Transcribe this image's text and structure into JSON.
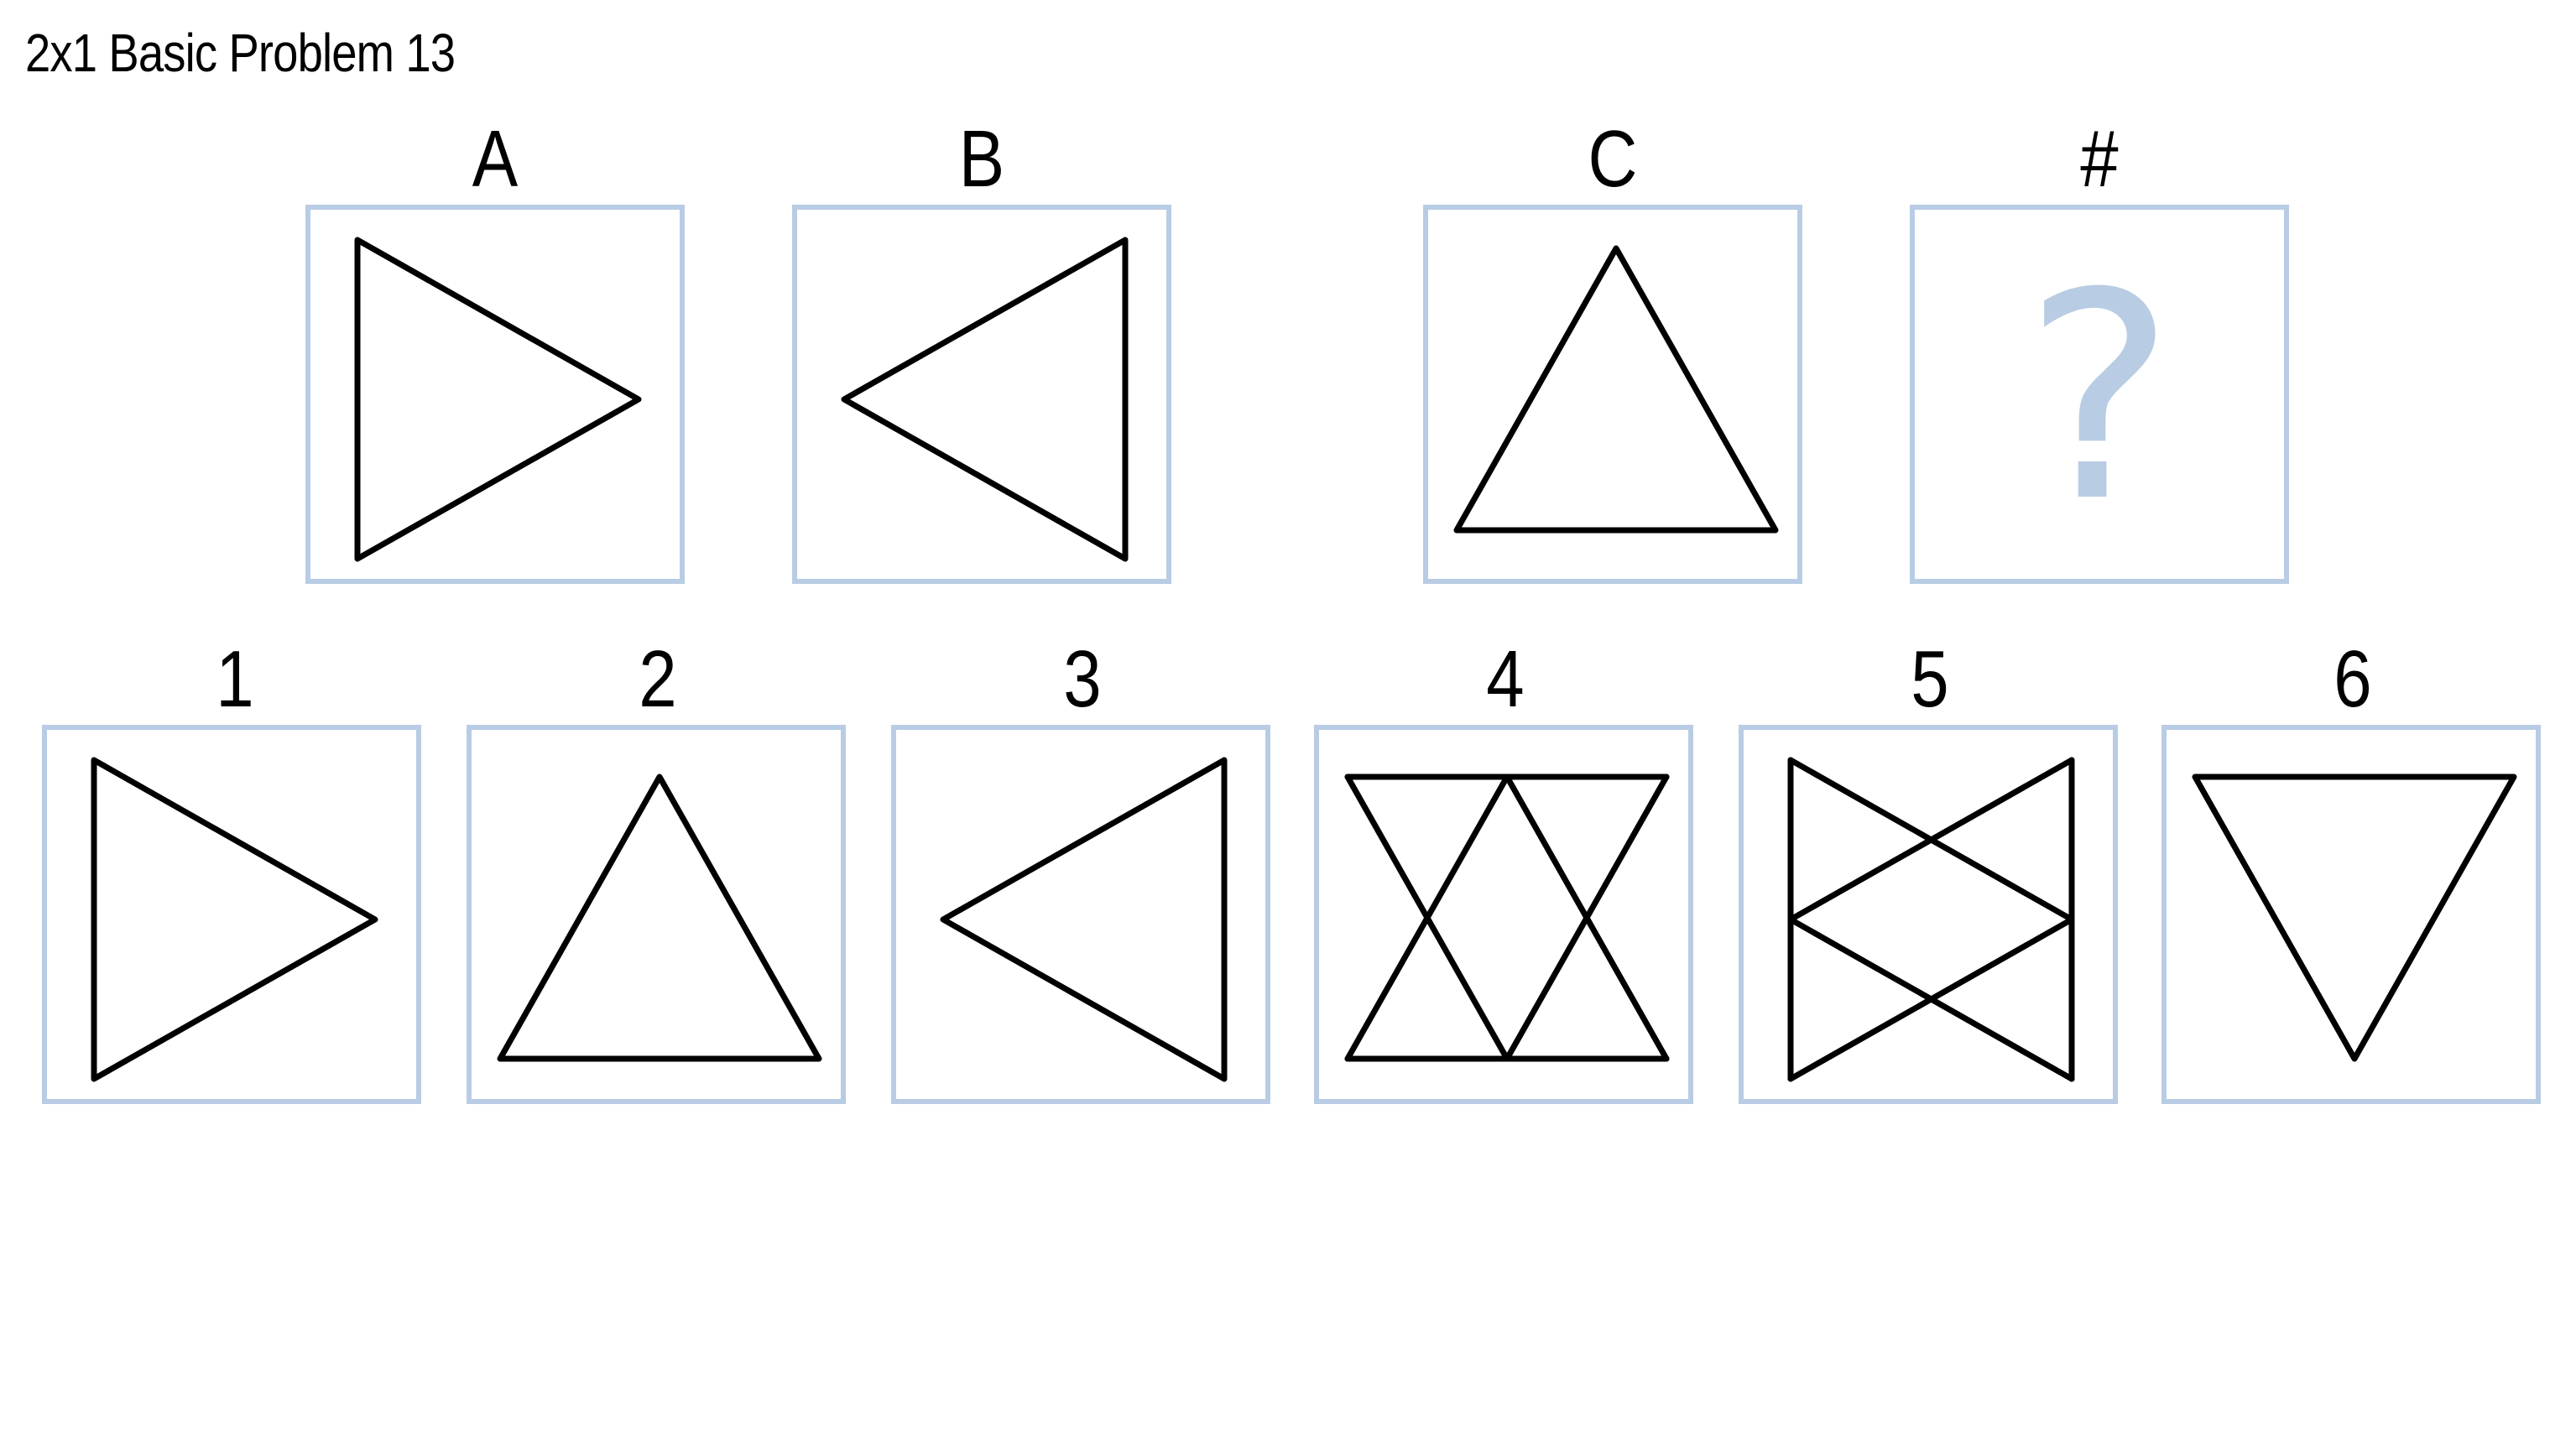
{
  "title": "2x1 Basic Problem 13",
  "matrix": {
    "A": {
      "label": "A",
      "shape": "triangle-right"
    },
    "B": {
      "label": "B",
      "shape": "triangle-left"
    },
    "C": {
      "label": "C",
      "shape": "triangle-up"
    },
    "answer": {
      "label": "#",
      "placeholder": "?"
    }
  },
  "options": [
    {
      "label": "1",
      "shape": "triangle-right"
    },
    {
      "label": "2",
      "shape": "triangle-up"
    },
    {
      "label": "3",
      "shape": "triangle-left"
    },
    {
      "label": "4",
      "shape": "hourglass-vertical-double"
    },
    {
      "label": "5",
      "shape": "bowtie-horizontal-double"
    },
    {
      "label": "6",
      "shape": "triangle-down"
    }
  ],
  "colors": {
    "panel_border": "#b8cce4",
    "stroke": "#000000",
    "placeholder": "#b8cce4"
  }
}
